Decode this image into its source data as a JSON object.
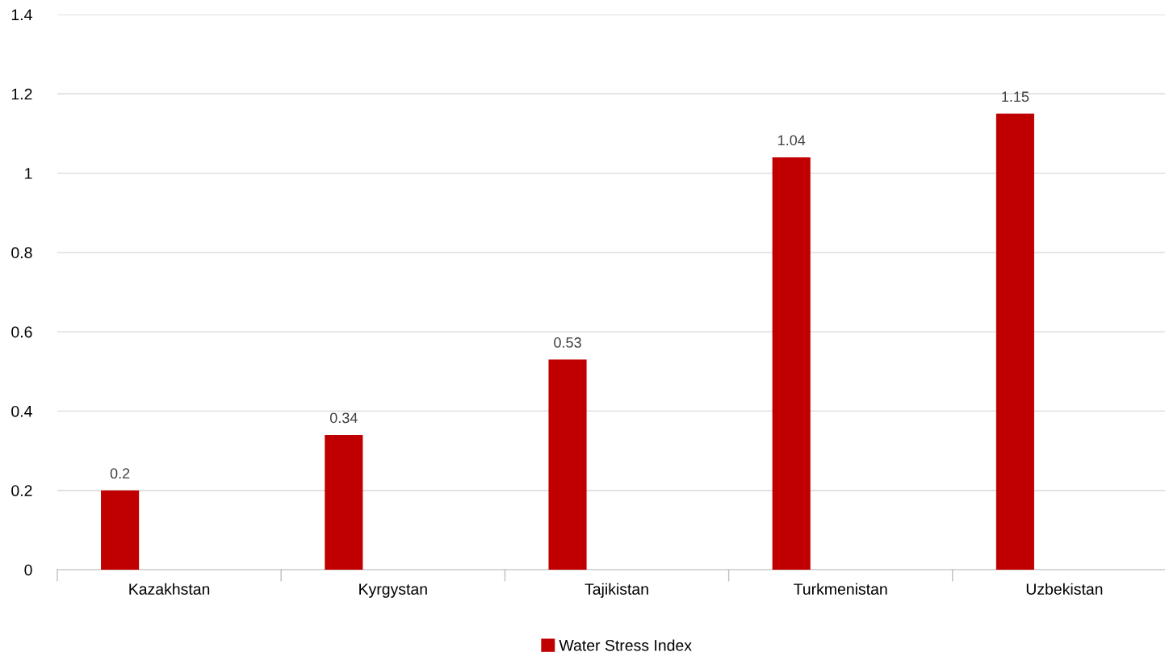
{
  "chart_data": {
    "type": "bar",
    "categories": [
      "Kazakhstan",
      "Kyrgystan",
      "Tajikistan",
      "Turkmenistan",
      "Uzbekistan"
    ],
    "series": [
      {
        "name": "Water Stress Index",
        "color": "#c00000",
        "values": [
          0.2,
          0.34,
          0.53,
          1.04,
          1.15
        ]
      }
    ],
    "ylim": [
      0,
      1.4
    ],
    "yticks": [
      0,
      0.2,
      0.4,
      0.6,
      0.8,
      1,
      1.2,
      1.4
    ],
    "grid": "y",
    "legend": "bottom",
    "data_labels": true
  }
}
